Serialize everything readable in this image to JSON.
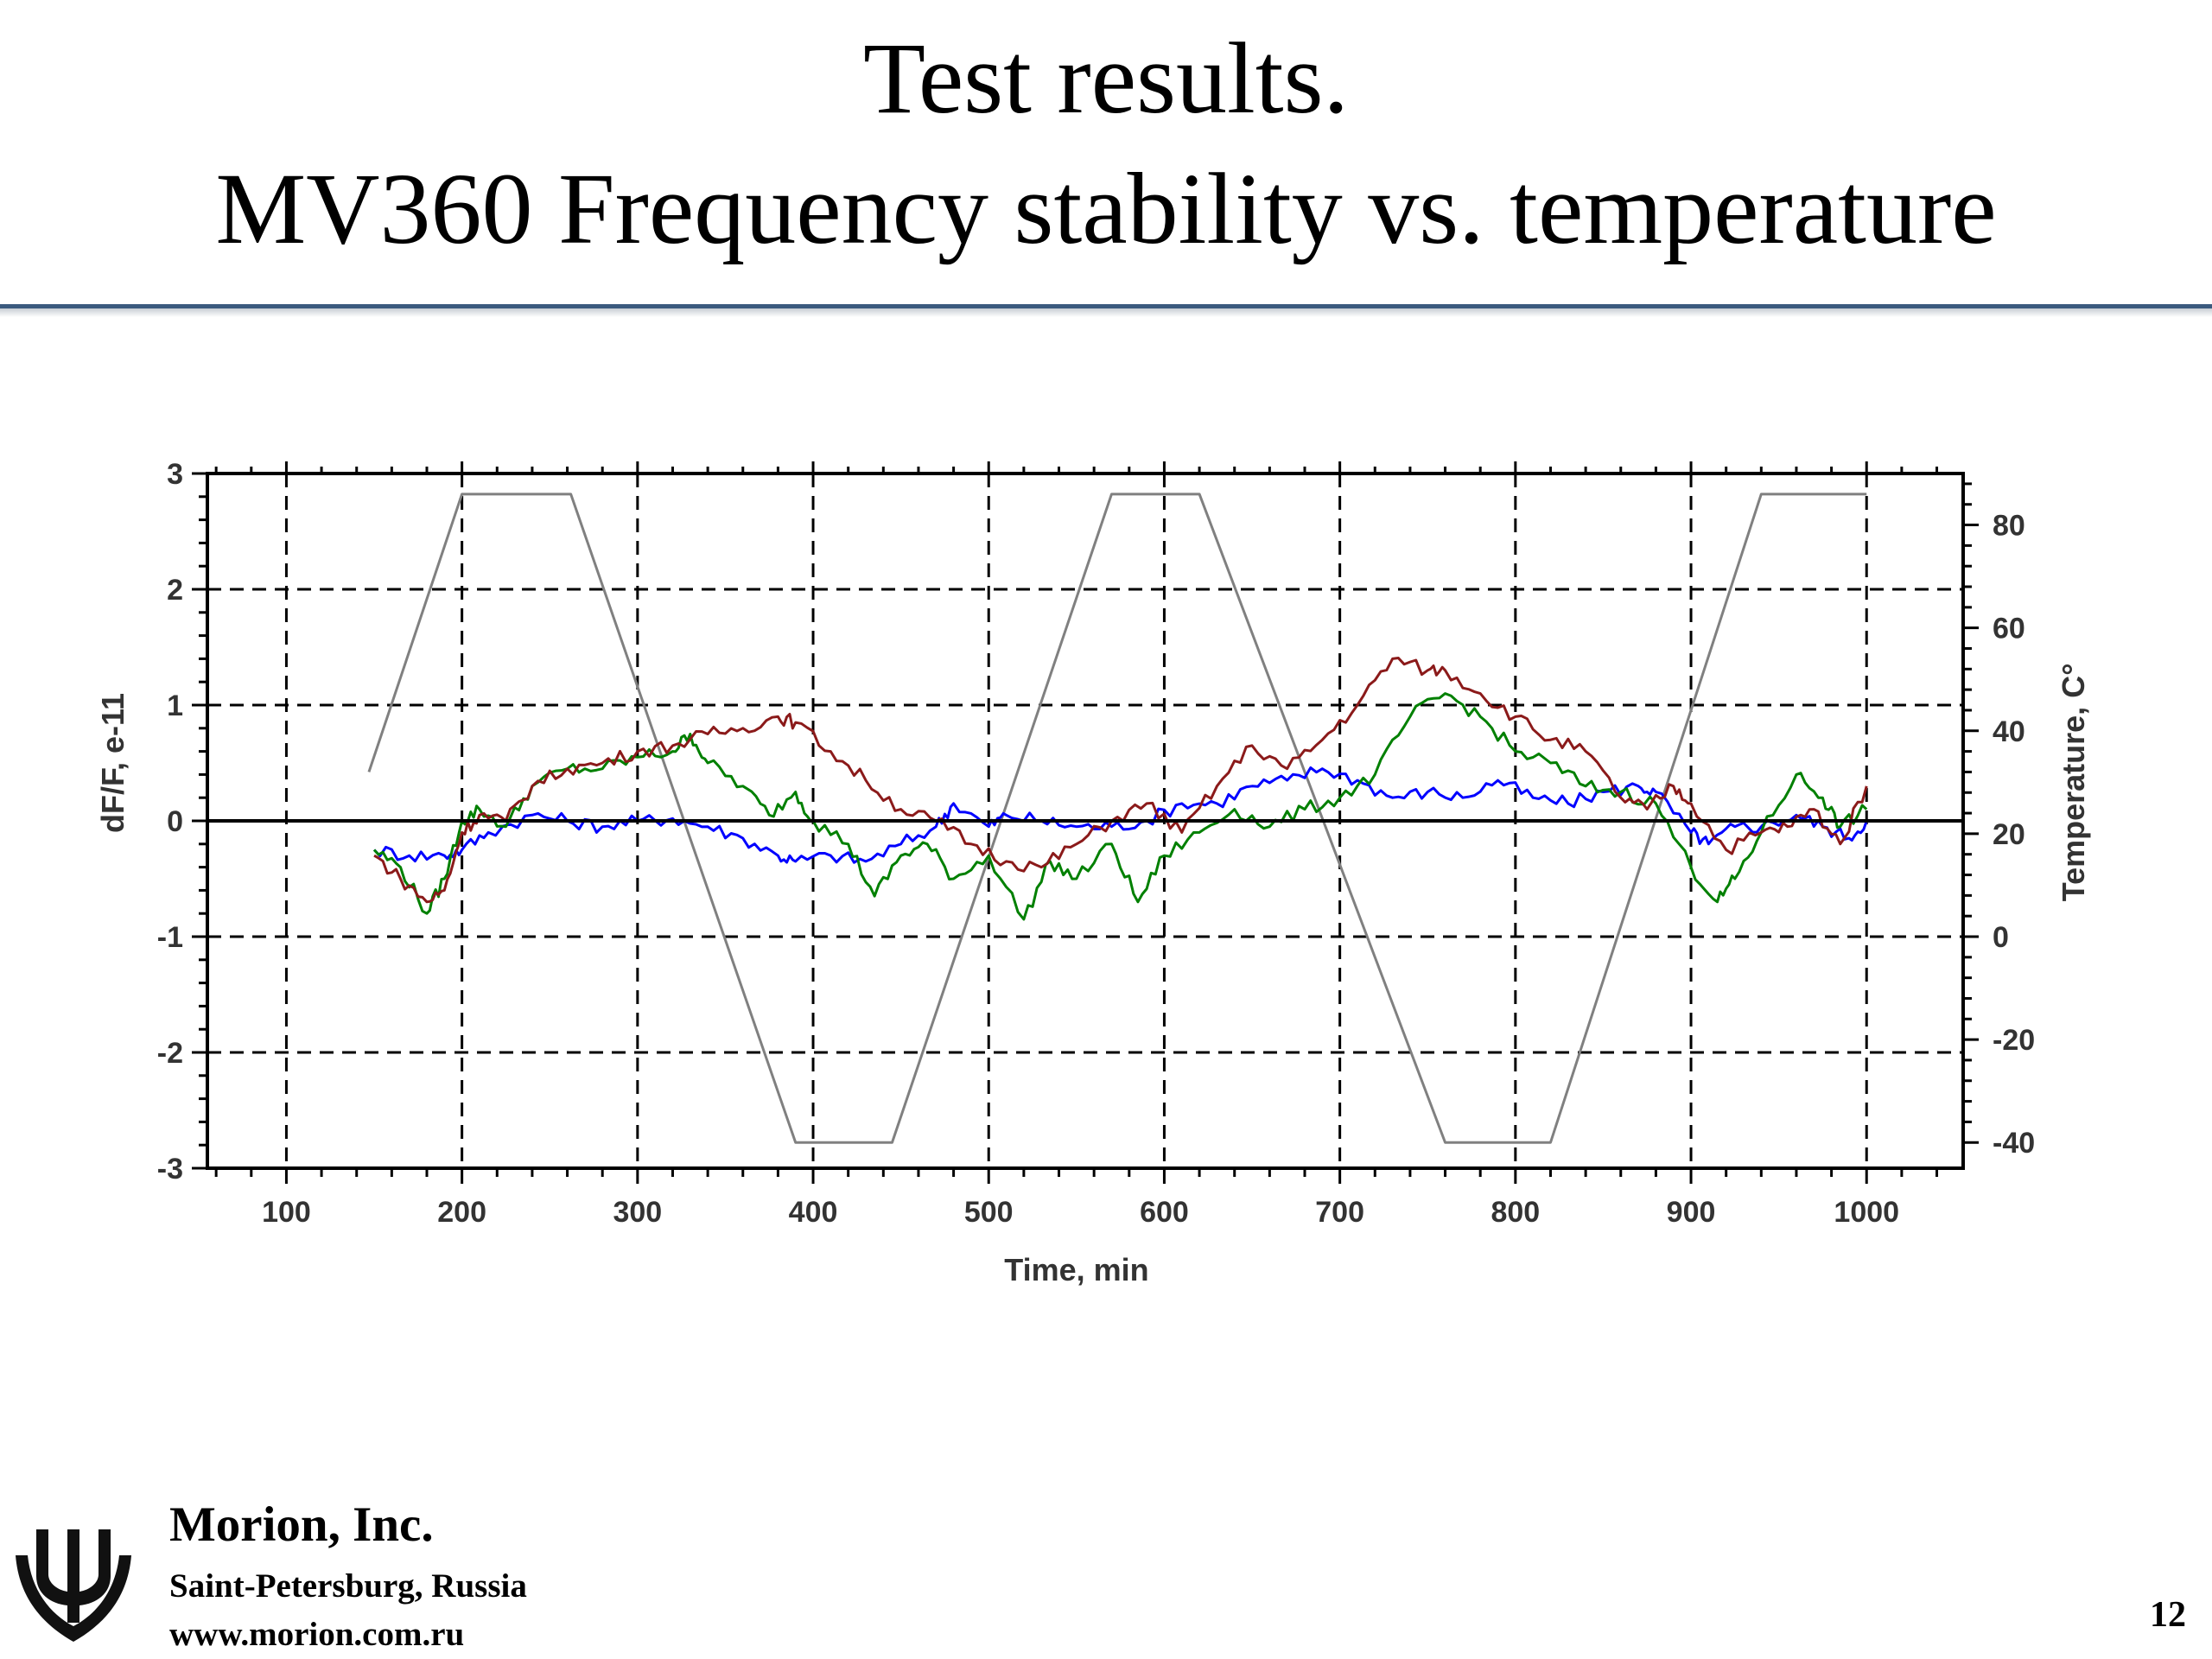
{
  "slide": {
    "title_line1": "Test results.",
    "title_line2": "MV360 Frequency  stability vs. temperature",
    "footer": {
      "company": "Morion, Inc.",
      "city": "Saint-Petersburg, Russia",
      "website": "www.morion.com.ru"
    },
    "page_number": "12",
    "colors": {
      "rule": "#3b5a7e"
    }
  },
  "chart_data": {
    "type": "line",
    "title": "",
    "xlabel": "Time, min",
    "ylabel": "dF/F, e-11",
    "y2label": "Temperature, C°",
    "xlim": [
      55,
      1055
    ],
    "ylim": [
      -3,
      3
    ],
    "y2lim": [
      -45,
      90
    ],
    "x_ticks": [
      100,
      200,
      300,
      400,
      500,
      600,
      700,
      800,
      900,
      1000
    ],
    "y_ticks": [
      -3,
      -2,
      -1,
      0,
      1,
      2,
      3
    ],
    "y2_ticks": [
      -40,
      -20,
      0,
      20,
      40,
      60,
      80
    ],
    "grid": "dashed",
    "legend": "none",
    "series": [
      {
        "axis": "y2",
        "color": "#808080",
        "x": [
          147,
          200,
          262,
          390,
          405,
          445,
          570,
          620,
          760,
          780,
          820,
          940,
          1000
        ],
        "y": [
          32,
          86,
          86,
          -40,
          -40,
          -40,
          86,
          86,
          -40,
          -40,
          -40,
          86,
          86
        ]
      },
      {
        "axis": "y",
        "color": "#0000ff",
        "x": [
          150,
          170,
          190,
          200,
          215,
          240,
          260,
          280,
          300,
          320,
          340,
          360,
          380,
          390,
          410,
          430,
          450,
          470,
          480,
          500,
          510,
          530,
          550,
          570,
          590,
          610,
          630,
          650,
          670,
          690,
          710,
          730,
          750,
          770,
          790,
          810,
          830,
          850,
          870,
          880,
          900,
          910,
          925,
          940,
          960,
          975,
          990,
          1000
        ],
        "y": [
          -0.25,
          -0.3,
          -0.3,
          -0.25,
          -0.1,
          0.05,
          0.0,
          -0.05,
          0.0,
          0.02,
          -0.05,
          -0.15,
          -0.3,
          -0.35,
          -0.3,
          -0.35,
          -0.2,
          -0.05,
          0.15,
          -0.05,
          0.05,
          0.0,
          -0.05,
          -0.05,
          0.0,
          0.15,
          0.15,
          0.3,
          0.35,
          0.45,
          0.35,
          0.2,
          0.25,
          0.2,
          0.35,
          0.2,
          0.15,
          0.25,
          0.3,
          0.25,
          -0.1,
          -0.2,
          -0.05,
          -0.05,
          0.05,
          -0.05,
          -0.15,
          0.0
        ]
      },
      {
        "axis": "y",
        "color": "#008000",
        "x": [
          150,
          165,
          180,
          190,
          200,
          210,
          225,
          240,
          260,
          280,
          300,
          320,
          330,
          340,
          360,
          375,
          390,
          400,
          420,
          435,
          450,
          465,
          480,
          500,
          520,
          535,
          550,
          570,
          585,
          600,
          620,
          640,
          660,
          680,
          700,
          720,
          740,
          760,
          780,
          800,
          820,
          840,
          860,
          880,
          900,
          915,
          925,
          940,
          960,
          975,
          985,
          1000
        ],
        "y": [
          -0.25,
          -0.4,
          -0.8,
          -0.5,
          0.0,
          0.1,
          -0.05,
          0.3,
          0.45,
          0.45,
          0.55,
          0.6,
          0.75,
          0.5,
          0.3,
          0.05,
          0.25,
          0.0,
          -0.2,
          -0.65,
          -0.3,
          -0.2,
          -0.5,
          -0.3,
          -0.85,
          -0.35,
          -0.5,
          -0.2,
          -0.7,
          -0.3,
          -0.1,
          0.1,
          -0.05,
          0.1,
          0.2,
          0.4,
          0.9,
          1.1,
          0.9,
          0.6,
          0.5,
          0.3,
          0.25,
          0.15,
          -0.4,
          -0.7,
          -0.5,
          -0.1,
          0.4,
          0.2,
          -0.05,
          0.1
        ]
      },
      {
        "axis": "y",
        "color": "#8b1a1a",
        "x": [
          150,
          165,
          180,
          190,
          200,
          210,
          225,
          240,
          260,
          280,
          300,
          320,
          340,
          360,
          380,
          390,
          410,
          430,
          450,
          470,
          490,
          510,
          530,
          550,
          570,
          590,
          610,
          630,
          650,
          670,
          690,
          710,
          730,
          750,
          760,
          780,
          800,
          820,
          840,
          860,
          875,
          890,
          900,
          920,
          940,
          955,
          970,
          985,
          1000
        ],
        "y": [
          -0.3,
          -0.5,
          -0.7,
          -0.6,
          -0.1,
          0.05,
          0.0,
          0.3,
          0.45,
          0.5,
          0.6,
          0.65,
          0.75,
          0.8,
          0.9,
          0.85,
          0.6,
          0.35,
          0.1,
          0.0,
          -0.2,
          -0.35,
          -0.4,
          -0.2,
          0.0,
          0.15,
          -0.1,
          0.3,
          0.65,
          0.45,
          0.7,
          1.0,
          1.4,
          1.3,
          1.3,
          1.1,
          0.9,
          0.7,
          0.6,
          0.2,
          0.1,
          0.3,
          0.15,
          -0.25,
          -0.1,
          -0.05,
          0.1,
          -0.2,
          0.3
        ]
      },
      {
        "axis": "y",
        "color": "#000000",
        "x": [
          55,
          1055
        ],
        "y": [
          0,
          0
        ]
      }
    ]
  }
}
